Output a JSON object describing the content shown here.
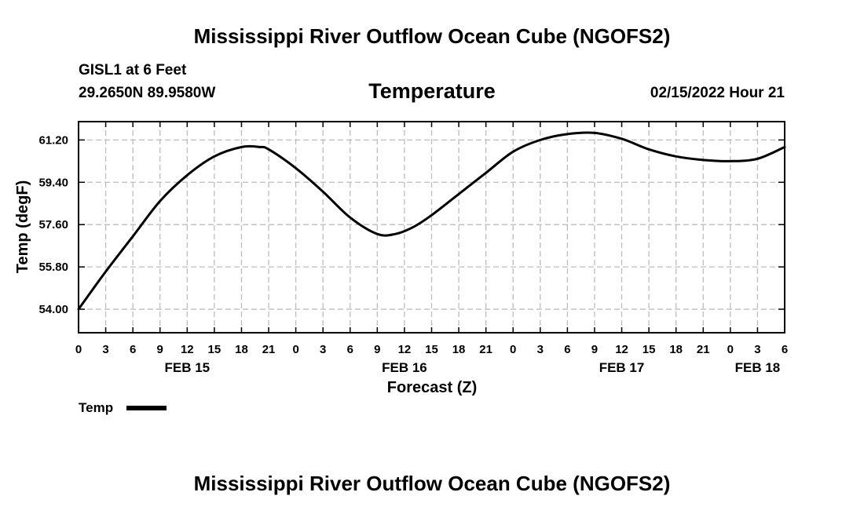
{
  "header": {
    "title": "Mississippi River Outflow Ocean Cube (NGOFS2)",
    "station": "GISL1 at 6 Feet",
    "coords": "29.2650N  89.9580W",
    "datetime": "02/15/2022 Hour 21"
  },
  "footer": {
    "title": "Mississippi River Outflow Ocean Cube (NGOFS2)"
  },
  "chart_data": {
    "type": "line",
    "title": "Temperature",
    "xlabel": "Forecast (Z)",
    "ylabel": "Temp (degF)",
    "ylim": [
      53.0,
      61.98
    ],
    "yticks": [
      54.0,
      55.8,
      57.6,
      59.4,
      61.2
    ],
    "ytick_labels": [
      "54.00",
      "55.80",
      "57.60",
      "59.40",
      "61.20"
    ],
    "xlim": [
      0,
      78
    ],
    "xtick_values": [
      0,
      3,
      6,
      9,
      12,
      15,
      18,
      21,
      24,
      27,
      30,
      33,
      36,
      39,
      42,
      45,
      48,
      51,
      54,
      57,
      60,
      63,
      66,
      69,
      72,
      75,
      78
    ],
    "xtick_labels": [
      "0",
      "3",
      "6",
      "9",
      "12",
      "15",
      "18",
      "21",
      "0",
      "3",
      "6",
      "9",
      "12",
      "15",
      "18",
      "21",
      "0",
      "3",
      "6",
      "9",
      "12",
      "15",
      "18",
      "21",
      "0",
      "3",
      "6"
    ],
    "day_labels": [
      {
        "x": 12,
        "label": "FEB 15"
      },
      {
        "x": 36,
        "label": "FEB 16"
      },
      {
        "x": 60,
        "label": "FEB 17"
      },
      {
        "x": 75,
        "label": "FEB 18"
      }
    ],
    "grid": true,
    "legend": {
      "position": "bottom-left",
      "entries": [
        {
          "name": "Temp",
          "color": "#000000"
        }
      ]
    },
    "series": [
      {
        "name": "Temp",
        "color": "#000000",
        "x": [
          0,
          3,
          6,
          9,
          12,
          15,
          18,
          20,
          21,
          24,
          27,
          30,
          33,
          35,
          37,
          39,
          42,
          45,
          48,
          51,
          54,
          57,
          60,
          63,
          66,
          69,
          72,
          75,
          78
        ],
        "y": [
          54.0,
          55.6,
          57.1,
          58.6,
          59.7,
          60.5,
          60.9,
          60.9,
          60.8,
          60.0,
          59.0,
          57.9,
          57.2,
          57.2,
          57.5,
          58.0,
          58.9,
          59.8,
          60.7,
          61.2,
          61.45,
          61.5,
          61.25,
          60.8,
          60.5,
          60.35,
          60.3,
          60.4,
          60.9
        ]
      }
    ]
  }
}
